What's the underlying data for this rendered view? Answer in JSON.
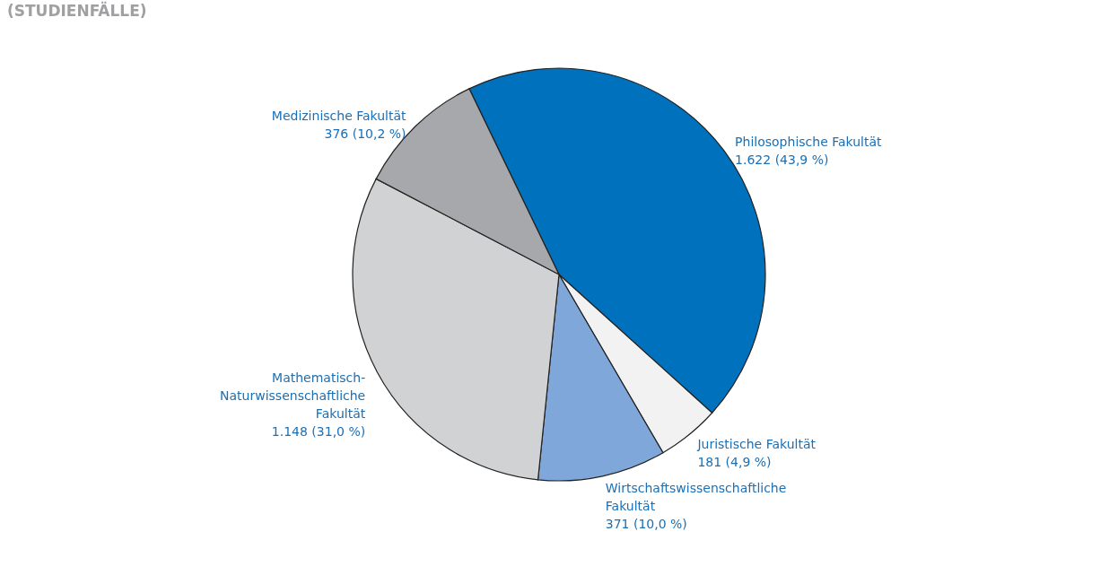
{
  "chart_data": {
    "type": "pie",
    "title": "(STUDIENFÄLLE)",
    "categories": [
      "Philosophische Fakultät",
      "Juristische Fakultät",
      "Wirtschaftswissenschaftliche Fakultät",
      "Mathematisch-Naturwissenschaftliche Fakultät",
      "Medizinische Fakultät"
    ],
    "values": [
      1622,
      181,
      371,
      1148,
      376
    ],
    "value_labels": [
      "1.622 (43,9 %)",
      "181 (4,9 %)",
      "371 (10,0 %)",
      "1.148 (31,0 %)",
      "376 (10,2 %)"
    ],
    "colors": [
      "#0071bc",
      "#f2f2f2",
      "#7fa7d9",
      "#d1d2d4",
      "#a7a8ab"
    ]
  }
}
